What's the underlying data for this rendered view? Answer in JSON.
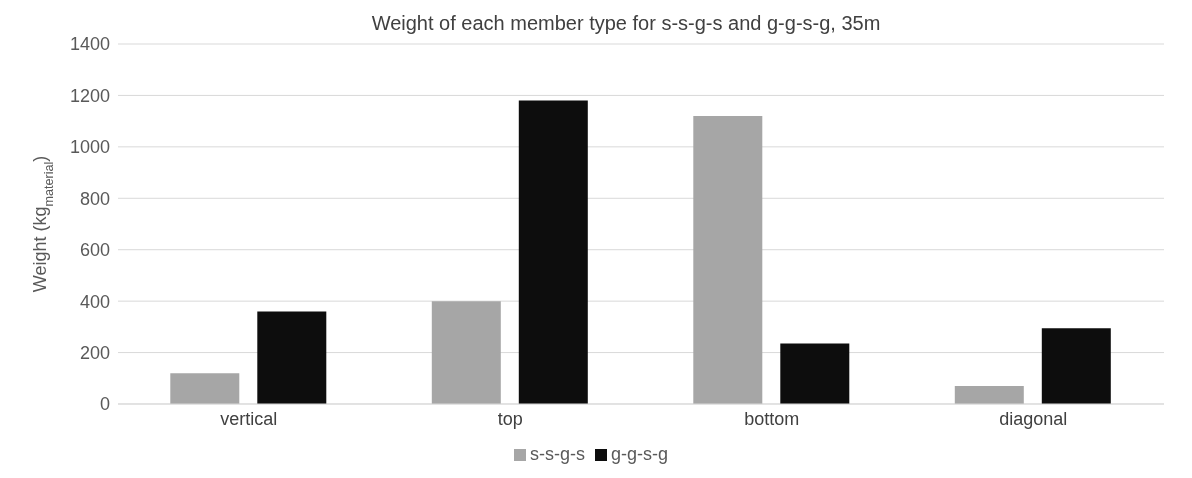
{
  "chart_data": {
    "type": "bar",
    "title": "Weight of each member type for s-s-g-s and g-g-s-g, 35m",
    "ylabel": "Weight (kg$_{material}$)",
    "categories": [
      "vertical",
      "top",
      "bottom",
      "diagonal"
    ],
    "series": [
      {
        "name": "s-s-g-s",
        "color": "#a6a6a6",
        "values": [
          120,
          400,
          1120,
          70
        ]
      },
      {
        "name": "g-g-s-g",
        "color": "#0d0d0d",
        "values": [
          360,
          1180,
          235,
          295
        ]
      }
    ],
    "ylim": [
      0,
      1400
    ],
    "yticks": [
      0,
      200,
      400,
      600,
      800,
      1000,
      1200,
      1400
    ],
    "grid": "y",
    "legend": "bottom"
  }
}
